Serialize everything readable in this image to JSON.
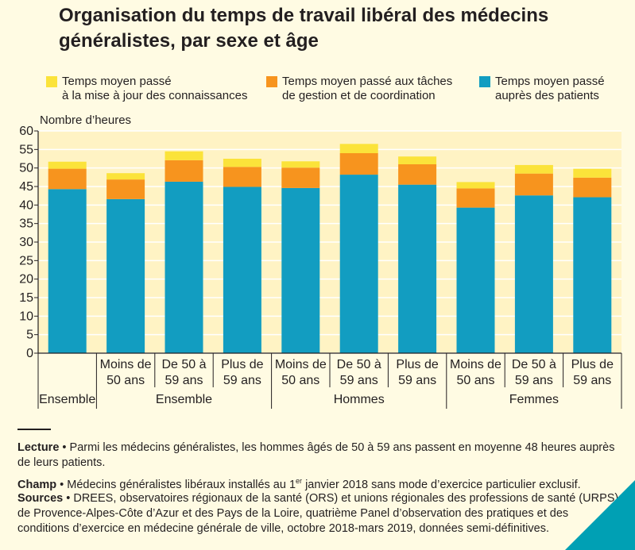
{
  "chart_data": {
    "type": "bar",
    "stacked": true,
    "title": "Organisation du temps de travail libéral des médecins\ngénéralistes, par sexe et âge",
    "ylabel": "Nombre d’heures",
    "ylim": [
      0,
      60
    ],
    "yticks": [
      0,
      5,
      10,
      15,
      20,
      25,
      30,
      35,
      40,
      45,
      50,
      55,
      60
    ],
    "grid": "horizontal",
    "legend_position": "top",
    "categories": [
      "Ensemble",
      "Moins de 50 ans",
      "De 50 à 59 ans",
      "Plus de 59 ans",
      "Moins de 50 ans",
      "De 50 à 59 ans",
      "Plus de 59 ans",
      "Moins de 50 ans",
      "De 50 à 59 ans",
      "Plus de 59 ans"
    ],
    "category_labels": [
      [
        "",
        ""
      ],
      [
        "Moins de",
        "50 ans"
      ],
      [
        "De 50 à",
        "59 ans"
      ],
      [
        "Plus de",
        "59 ans"
      ],
      [
        "Moins de",
        "50 ans"
      ],
      [
        "De 50 à",
        "59 ans"
      ],
      [
        "Plus de",
        "59 ans"
      ],
      [
        "Moins de",
        "50 ans"
      ],
      [
        "De 50 à",
        "59 ans"
      ],
      [
        "Plus de",
        "59 ans"
      ]
    ],
    "groups": [
      {
        "label": "Ensemble",
        "start": 0,
        "end": 0
      },
      {
        "label": "Ensemble",
        "start": 1,
        "end": 3
      },
      {
        "label": "Hommes",
        "start": 4,
        "end": 6
      },
      {
        "label": "Femmes",
        "start": 7,
        "end": 9
      }
    ],
    "series": [
      {
        "name": "Temps moyen passé\nauprès des patients",
        "color": "#129dc1",
        "values": [
          44.3,
          41.6,
          46.3,
          44.9,
          44.6,
          48.2,
          45.5,
          39.3,
          42.6,
          42.1
        ]
      },
      {
        "name": "Temps moyen passé aux tâches\nde gestion et de coordination",
        "color": "#f7941e",
        "values": [
          5.5,
          5.3,
          5.8,
          5.4,
          5.5,
          5.8,
          5.5,
          5.2,
          5.9,
          5.3
        ]
      },
      {
        "name": "Temps moyen passé\nà la mise à jour des connaissances",
        "color": "#fbe33a",
        "values": [
          1.9,
          1.7,
          2.4,
          2.2,
          1.7,
          2.5,
          2.1,
          1.7,
          2.3,
          2.4
        ]
      }
    ]
  },
  "legend_order": [
    2,
    1,
    0
  ],
  "footer": {
    "lecture_label": "Lecture",
    "lecture_text": " • Parmi les médecins généralistes, les hommes âgés de 50 à 59 ans passent en moyenne 48 heures auprès de leurs patients.",
    "champ_label": "Champ",
    "champ_text_a": " • Médecins généralistes libéraux installés au 1",
    "champ_sup": "er",
    "champ_text_b": " janvier 2018 sans mode d’exercice particulier exclusif.",
    "sources_label": "Sources",
    "sources_text": " • DREES, observatoires régionaux de la santé (ORS) et unions régionales des professions de santé (URPS) de Provence-Alpes-Côte d’Azur et des Pays de la Loire, quatrième Panel d’observation des pratiques et des conditions d’exercice en médecine générale de ville, octobre 2018-mars 2019, données semi-définitives."
  }
}
